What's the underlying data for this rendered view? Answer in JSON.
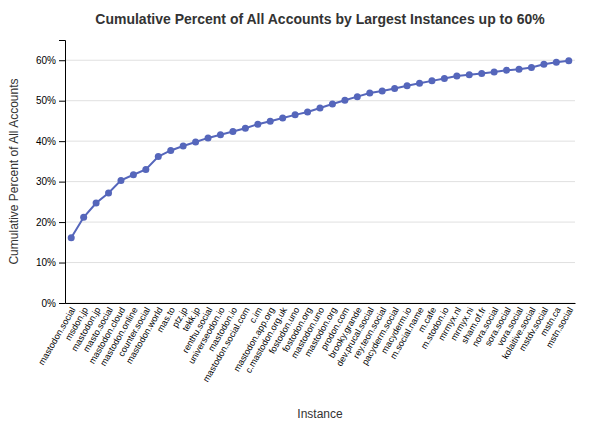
{
  "chart_data": {
    "type": "line",
    "title": "Cumulative Percent of All Accounts by Largest Instances up to 60%",
    "x_label": "Instance",
    "y_label": "Cumulative Percent of All Accounts",
    "categories": [
      "mastodon.social",
      "msdon.jp",
      "mastodon.jp",
      "masto.social",
      "mastodon.cloud",
      "mastodon.online",
      "counter.social",
      "mastodon.world",
      "mas.to",
      "ptz.jp",
      "tekk.jp",
      "renthu.social",
      "universeodon.io",
      "mastodon.io",
      "mastodon.social.com",
      "c.im",
      "mastodon.app.org",
      "c.mastodon.org.uk",
      "fostodon.uno",
      "fostodon.org",
      "mastodon.uno",
      "mastodon.org",
      "prodon.com",
      "brooky.grande",
      "dev.prucal.social",
      "rey.teon.social",
      "pacyderm.social",
      "macyderm.io",
      "m.social.name",
      "m.cafe",
      "m.stodon.io",
      "mrmyx.nl",
      "mrmyx.ni",
      "sham.of.fr",
      "nora.social",
      "sora.social",
      "vora.social",
      "kolaitive.social",
      "mstdv.social",
      "mstn.ca",
      "mstn.social"
    ],
    "values": [
      0.161,
      0.212,
      0.247,
      0.272,
      0.303,
      0.317,
      0.33,
      0.362,
      0.377,
      0.388,
      0.398,
      0.408,
      0.416,
      0.424,
      0.432,
      0.442,
      0.449,
      0.457,
      0.465,
      0.472,
      0.482,
      0.492,
      0.501,
      0.51,
      0.519,
      0.524,
      0.53,
      0.537,
      0.543,
      0.549,
      0.555,
      0.561,
      0.564,
      0.567,
      0.571,
      0.575,
      0.578,
      0.582,
      0.59,
      0.595,
      0.599
    ],
    "color": "#5566bb",
    "marker": "circle",
    "ylim": [
      0,
      0.65
    ],
    "yticks": [
      {
        "value": 0,
        "label": "0%"
      },
      {
        "value": 0.1,
        "label": "10%"
      },
      {
        "value": 0.2,
        "label": "20%"
      },
      {
        "value": 0.3,
        "label": "30%"
      },
      {
        "value": 0.4,
        "label": "40%"
      },
      {
        "value": 0.5,
        "label": "50%"
      },
      {
        "value": 0.6,
        "label": "60%"
      }
    ],
    "grid": true
  }
}
